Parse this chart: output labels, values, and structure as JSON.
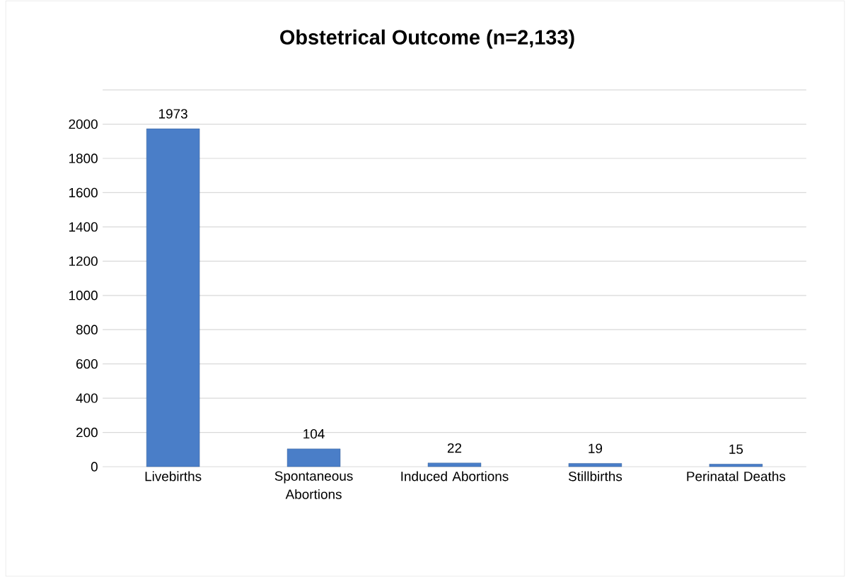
{
  "chart_data": {
    "type": "bar",
    "title": "Obstetrical Outcome (n=2,133)",
    "categories": [
      "Livebirths",
      "Spontaneous Abortions",
      "Induced Abortions",
      "Stillbirths",
      "Perinatal Deaths"
    ],
    "values": [
      1973,
      104,
      22,
      19,
      15
    ],
    "color": "#4a7ec8",
    "ylim": [
      0,
      2200
    ],
    "yticks": [
      0,
      200,
      400,
      600,
      800,
      1000,
      1200,
      1400,
      1600,
      1800,
      2000,
      {
        "value": 2200,
        "label": null
      }
    ],
    "grid": "y",
    "data_labels": true
  }
}
